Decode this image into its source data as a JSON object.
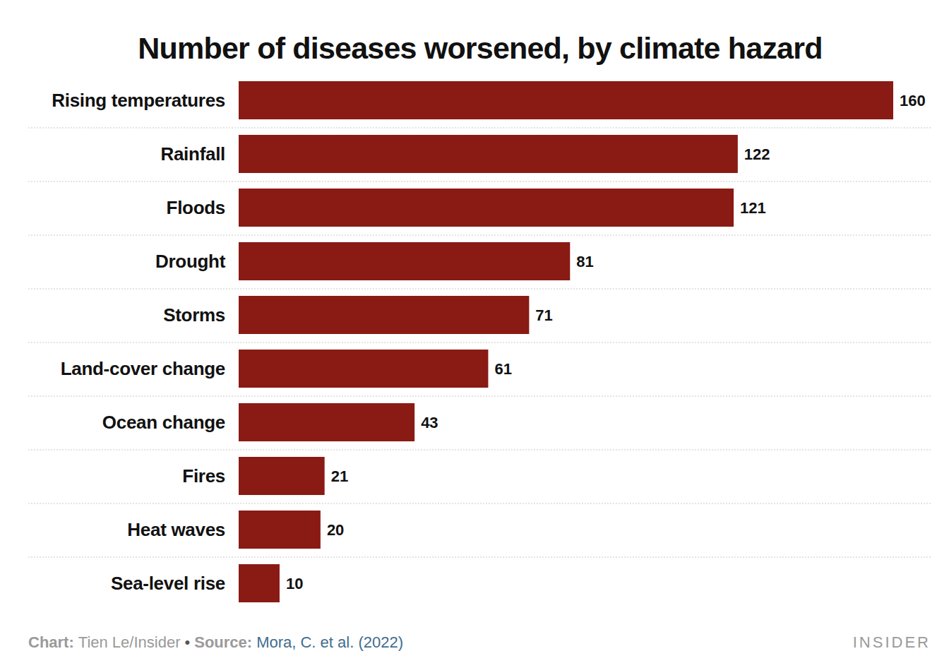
{
  "chart_data": {
    "type": "bar",
    "orientation": "horizontal",
    "title": "Number of diseases worsened, by climate hazard",
    "categories": [
      "Rising temperatures",
      "Rainfall",
      "Floods",
      "Drought",
      "Storms",
      "Land-cover change",
      "Ocean change",
      "Fires",
      "Heat waves",
      "Sea-level rise"
    ],
    "values": [
      160,
      122,
      121,
      81,
      71,
      61,
      43,
      21,
      20,
      10
    ],
    "color": "#8a1a14",
    "xlim": [
      0,
      160
    ],
    "tick_labels": false,
    "data_labels": true,
    "credit": {
      "label": "Chart:",
      "text": "Tien Le/Insider"
    },
    "separator": "•",
    "source": {
      "label": "Source:",
      "text": "Mora, C. et al. (2022)"
    },
    "brand": "INSIDER"
  }
}
